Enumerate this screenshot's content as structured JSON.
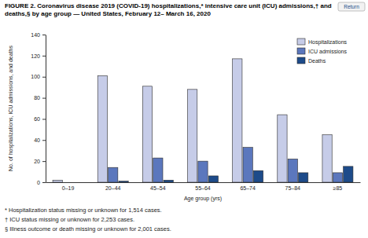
{
  "chart_data": {
    "type": "bar",
    "title": "FIGURE 2. Coronavirus disease 2019 (COVID-19) hospitalizations,* intensive care unit (ICU) admissions,† and deaths,§ by age group — United States, February 12– March 16, 2020",
    "return_button": "Return",
    "x_label": "Age group (yrs)",
    "y_label": "No. of hospitalizations, ICU admissions, and deaths",
    "categories": [
      "0–19",
      "20–44",
      "45–54",
      "55–64",
      "65–74",
      "75–84",
      "≥85"
    ],
    "series": [
      {
        "name": "Hospitalizations",
        "color": "#c6cce8",
        "values": [
          2,
          101,
          91,
          88,
          117,
          64,
          45
        ]
      },
      {
        "name": "ICU admissions",
        "color": "#5b77bd",
        "values": [
          0,
          14,
          23,
          20,
          33,
          22,
          9
        ]
      },
      {
        "name": "Deaths",
        "color": "#1d4b8a",
        "values": [
          0,
          1,
          2,
          6,
          11,
          9,
          15
        ]
      }
    ],
    "ylim": [
      0,
      140
    ],
    "yticks": [
      0,
      20,
      40,
      60,
      80,
      100,
      120,
      140
    ],
    "grid": false,
    "legend": "upper right",
    "footnotes": [
      "* Hospitalization status missing or unknown for 1,514 cases.",
      "† ICU status missing or unknown for 2,253 cases.",
      "§ Illness outcome or death missing or unknown for 2,001 cases."
    ]
  }
}
